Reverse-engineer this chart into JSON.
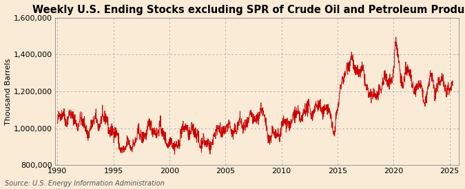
{
  "title": "Weekly U.S. Ending Stocks excluding SPR of Crude Oil and Petroleum Products",
  "ylabel": "Thousand Barrels",
  "source": "Source: U.S. Energy Information Administration",
  "line_color": "#cc0000",
  "background_color": "#faebd7",
  "plot_background": "#faebd7",
  "xlim": [
    1989.8,
    2025.8
  ],
  "ylim": [
    800000,
    1600000
  ],
  "yticks": [
    800000,
    1000000,
    1200000,
    1400000,
    1600000
  ],
  "ytick_labels": [
    "800,000",
    "1,000,000",
    "1,200,000",
    "1,400,000",
    "1,600,000"
  ],
  "xticks": [
    1990,
    1995,
    2000,
    2005,
    2010,
    2015,
    2020,
    2025
  ],
  "grid_color": "#999999",
  "grid_linestyle": "--",
  "line_width": 0.7,
  "title_fontsize": 10.5,
  "label_fontsize": 8,
  "tick_fontsize": 8,
  "source_fontsize": 7
}
